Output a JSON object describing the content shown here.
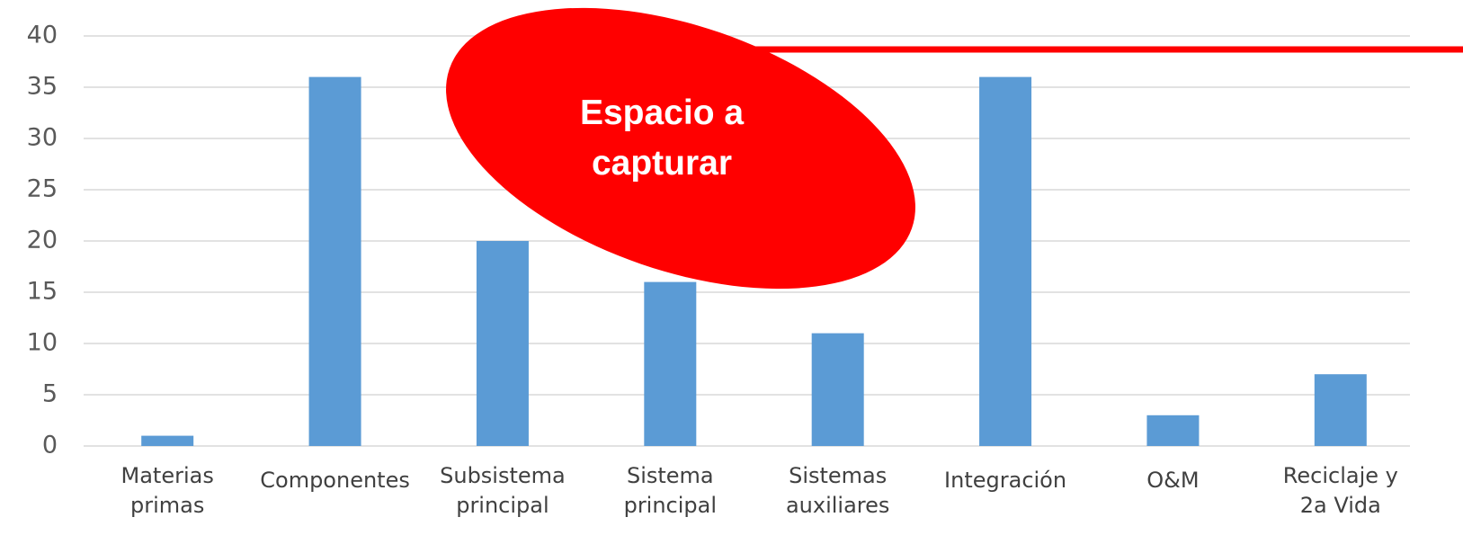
{
  "chart_data": {
    "type": "bar",
    "categories": [
      "Materias\nprimas",
      "Componentes",
      "Subsistema\nprincipal",
      "Sistema\nprincipal",
      "Sistemas\nauxiliares",
      "Integración",
      "O&M",
      "Reciclaje y\n2a Vida"
    ],
    "values": [
      1,
      36,
      20,
      16,
      11,
      36,
      3,
      7
    ],
    "color": "#5b9bd5",
    "ylim": [
      0,
      40
    ],
    "yticks": [
      0,
      5,
      10,
      15,
      20,
      25,
      30,
      35,
      40
    ],
    "grid": true,
    "annotation": "Espacio a\ncapturar"
  }
}
